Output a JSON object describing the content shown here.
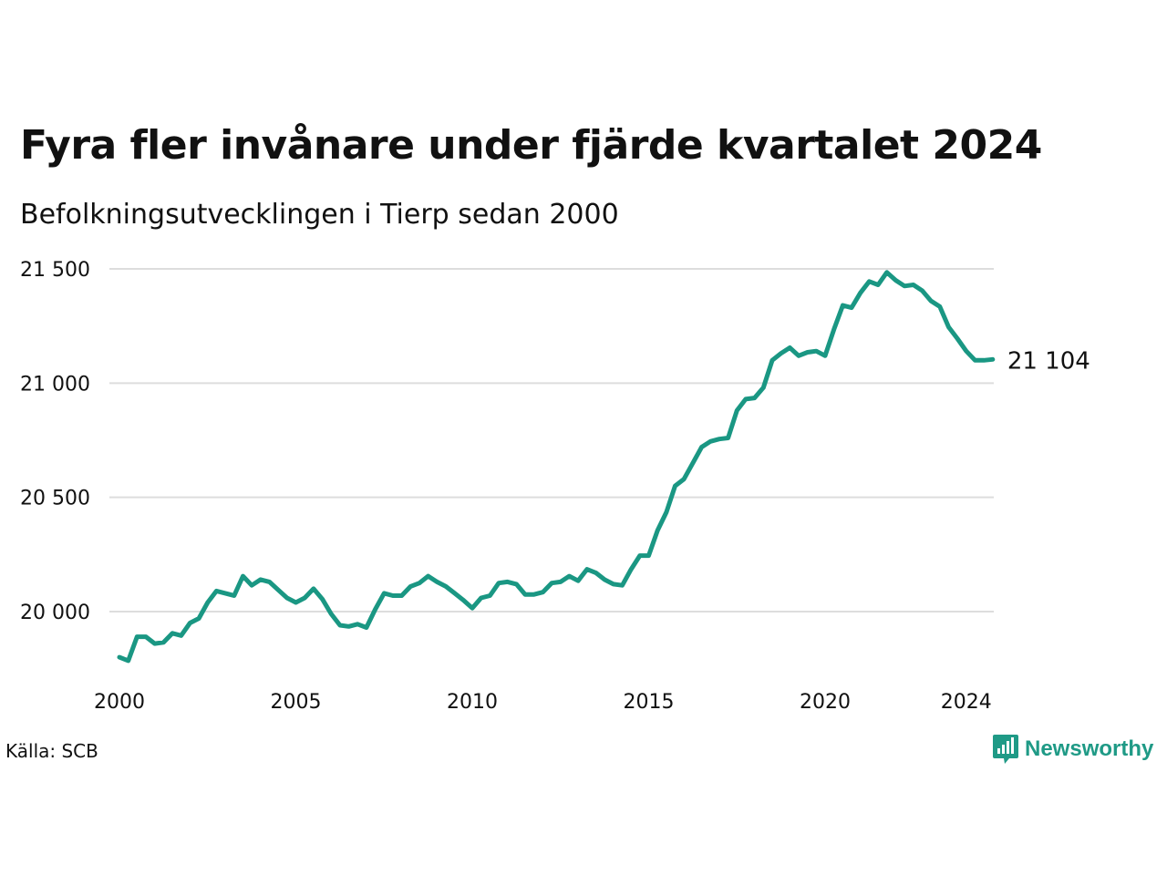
{
  "title": "Fyra fler invånare under fjärde kvartalet 2024",
  "subtitle": "Befolkningsutvecklingen i Tierp sedan 2000",
  "source": "Källa: SCB",
  "brand": {
    "name": "Newsworthy",
    "icon": "newsworthy-logo-icon"
  },
  "colors": {
    "line": "#1a9783",
    "grid": "#dddddd",
    "text": "#111111",
    "brand": "#1f9a86"
  },
  "chart_data": {
    "type": "line",
    "title": "Fyra fler invånare under fjärde kvartalet 2024",
    "subtitle": "Befolkningsutvecklingen i Tierp sedan 2000",
    "xlabel": "",
    "ylabel": "",
    "xlim": [
      2000.0,
      2024.75
    ],
    "ylim": [
      19800,
      21550
    ],
    "grid": true,
    "y_ticks": [
      20000,
      20500,
      21000,
      21500
    ],
    "y_tick_labels": [
      "20 000",
      "20 500",
      "21 000",
      "21 500"
    ],
    "x_ticks": [
      2000,
      2005,
      2010,
      2015,
      2020,
      2024
    ],
    "x_tick_labels": [
      "2000",
      "2005",
      "2010",
      "2015",
      "2020",
      "2024"
    ],
    "end_label": "21 104",
    "series": [
      {
        "x": [
          2000.0,
          2000.25,
          2000.5,
          2000.75,
          2001.0,
          2001.25,
          2001.5,
          2001.75,
          2002.0,
          2002.25,
          2002.5,
          2002.75,
          2003.0,
          2003.25,
          2003.5,
          2003.75,
          2004.0,
          2004.25,
          2004.5,
          2004.75,
          2005.0,
          2005.25,
          2005.5,
          2005.75,
          2006.0,
          2006.25,
          2006.5,
          2006.75,
          2007.0,
          2007.25,
          2007.5,
          2007.75,
          2008.0,
          2008.25,
          2008.5,
          2008.75,
          2009.0,
          2009.25,
          2009.5,
          2009.75,
          2010.0,
          2010.25,
          2010.5,
          2010.75,
          2011.0,
          2011.25,
          2011.5,
          2011.75,
          2012.0,
          2012.25,
          2012.5,
          2012.75,
          2013.0,
          2013.25,
          2013.5,
          2013.75,
          2014.0,
          2014.25,
          2014.5,
          2014.75,
          2015.0,
          2015.25,
          2015.5,
          2015.75,
          2016.0,
          2016.25,
          2016.5,
          2016.75,
          2017.0,
          2017.25,
          2017.5,
          2017.75,
          2018.0,
          2018.25,
          2018.5,
          2018.75,
          2019.0,
          2019.25,
          2019.5,
          2019.75,
          2020.0,
          2020.25,
          2020.5,
          2020.75,
          2021.0,
          2021.25,
          2021.5,
          2021.75,
          2022.0,
          2022.25,
          2022.5,
          2022.75,
          2023.0,
          2023.25,
          2023.5,
          2023.75,
          2024.0,
          2024.25,
          2024.5,
          2024.75
        ],
        "values": [
          19800,
          19785,
          19890,
          19890,
          19860,
          19865,
          19905,
          19895,
          19950,
          19970,
          20040,
          20090,
          20080,
          20070,
          20155,
          20115,
          20140,
          20130,
          20095,
          20060,
          20040,
          20060,
          20100,
          20055,
          19990,
          19940,
          19935,
          19945,
          19930,
          20010,
          20080,
          20070,
          20070,
          20110,
          20125,
          20155,
          20130,
          20110,
          20080,
          20050,
          20015,
          20060,
          20070,
          20125,
          20130,
          20120,
          20075,
          20075,
          20085,
          20125,
          20130,
          20155,
          20135,
          20185,
          20170,
          20140,
          20120,
          20115,
          20185,
          20245,
          20245,
          20355,
          20435,
          20550,
          20580,
          20650,
          20720,
          20745,
          20755,
          20760,
          20880,
          20930,
          20935,
          20980,
          21100,
          21130,
          21155,
          21120,
          21135,
          21140,
          21120,
          21235,
          21340,
          21330,
          21395,
          21445,
          21430,
          21485,
          21450,
          21425,
          21430,
          21405,
          21360,
          21335,
          21245,
          21195,
          21140,
          21100,
          21100,
          21104
        ]
      }
    ]
  }
}
